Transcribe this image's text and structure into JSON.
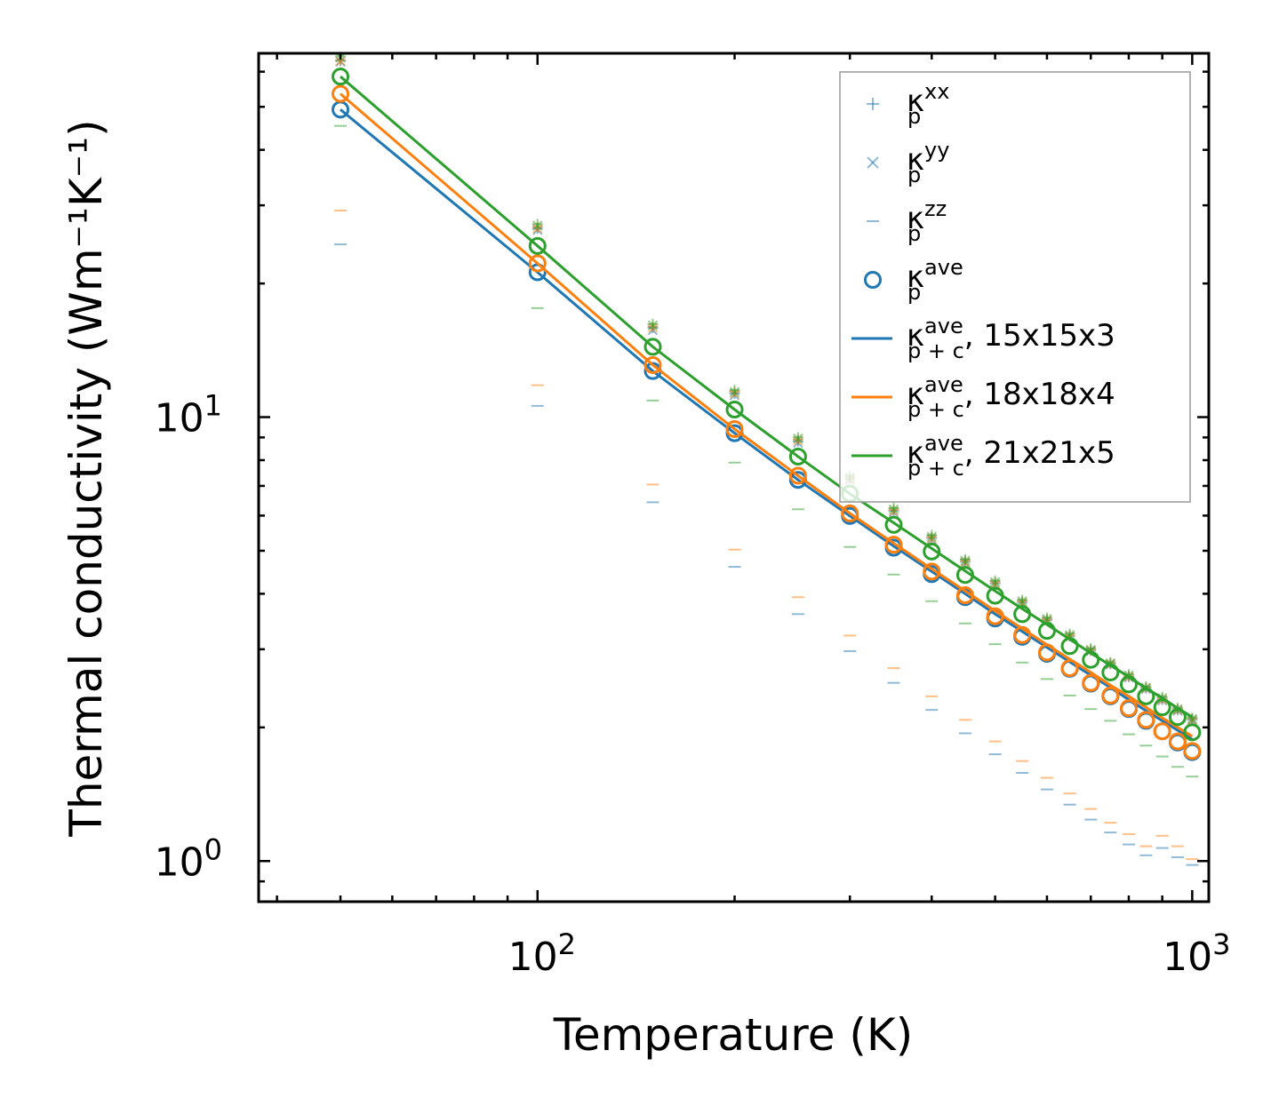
{
  "chart_data": {
    "type": "line",
    "scale": "log-log",
    "xlabel": "Temperature (K)",
    "ylabel": "Thermal conductivity (Wm⁻¹K⁻¹)",
    "xlim": [
      37.5,
      1060
    ],
    "ylim": [
      0.81,
      66
    ],
    "x_major_ticks": [
      {
        "value": 100,
        "base": "10",
        "exp": "2"
      },
      {
        "value": 1000,
        "base": "10",
        "exp": "3"
      }
    ],
    "y_major_ticks": [
      {
        "value": 1,
        "base": "10",
        "exp": "0"
      },
      {
        "value": 10,
        "base": "10",
        "exp": "1"
      }
    ],
    "x": [
      50,
      100,
      150,
      200,
      250,
      300,
      350,
      400,
      450,
      500,
      550,
      600,
      650,
      700,
      750,
      800,
      850,
      900,
      950,
      1000
    ],
    "colors": {
      "c15": "#1f77b4",
      "c18": "#ff7f0e",
      "c21": "#2ca02c"
    },
    "series": [
      {
        "name": "15x15x3",
        "color": "#1f77b4",
        "kappa_p_ave": [
          49.3,
          21.2,
          12.7,
          9.2,
          7.22,
          5.99,
          5.08,
          4.43,
          3.93,
          3.52,
          3.2,
          2.93,
          2.71,
          2.51,
          2.35,
          2.2,
          2.07,
          1.96,
          1.85,
          1.76
        ],
        "kappa_p_xx": [
          63.5,
          26.6,
          15.9,
          11.3,
          8.82,
          7.26,
          6.15,
          5.34,
          4.72,
          4.22,
          3.82,
          3.49,
          3.21,
          2.98,
          2.78,
          2.6,
          2.45,
          2.31,
          2.19,
          2.08
        ],
        "kappa_p_yy": [
          63.2,
          26.4,
          15.7,
          11.2,
          8.75,
          7.2,
          6.1,
          5.3,
          4.69,
          4.19,
          3.8,
          3.47,
          3.2,
          2.97,
          2.77,
          2.59,
          2.44,
          2.3,
          2.18,
          2.07
        ],
        "kappa_p_zz": [
          24.5,
          10.6,
          6.43,
          4.6,
          3.6,
          2.97,
          2.52,
          2.19,
          1.94,
          1.74,
          1.58,
          1.45,
          1.34,
          1.24,
          1.16,
          1.09,
          1.03,
          1.07,
          1.02,
          0.98
        ],
        "kappa_pc_ave": [
          49.3,
          21.2,
          12.7,
          9.2,
          7.22,
          5.99,
          5.12,
          4.49,
          4.0,
          3.6,
          3.29,
          3.03,
          2.81,
          2.62,
          2.46,
          2.31,
          2.18,
          2.07,
          1.97,
          1.88
        ]
      },
      {
        "name": "18x18x4",
        "color": "#ff7f0e",
        "kappa_p_ave": [
          53.5,
          22.2,
          13.1,
          9.4,
          7.38,
          6.07,
          5.16,
          4.49,
          3.97,
          3.56,
          3.23,
          2.95,
          2.72,
          2.52,
          2.36,
          2.21,
          2.08,
          1.96,
          1.86,
          1.77
        ],
        "kappa_p_xx": [
          63.7,
          26.8,
          16.0,
          11.4,
          8.9,
          7.3,
          6.18,
          5.36,
          4.74,
          4.24,
          3.84,
          3.5,
          3.22,
          2.99,
          2.79,
          2.61,
          2.46,
          2.32,
          2.2,
          2.09
        ],
        "kappa_p_yy": [
          63.4,
          26.6,
          15.9,
          11.3,
          8.85,
          7.25,
          6.14,
          5.33,
          4.71,
          4.21,
          3.82,
          3.48,
          3.2,
          2.98,
          2.78,
          2.6,
          2.45,
          2.31,
          2.19,
          2.08
        ],
        "kappa_p_zz": [
          29.2,
          11.8,
          7.05,
          5.03,
          3.93,
          3.22,
          2.72,
          2.35,
          2.08,
          1.86,
          1.68,
          1.54,
          1.42,
          1.31,
          1.22,
          1.15,
          1.08,
          1.14,
          1.08,
          1.01
        ],
        "kappa_pc_ave": [
          53.5,
          22.2,
          13.1,
          9.4,
          7.38,
          6.07,
          5.2,
          4.55,
          4.06,
          3.66,
          3.34,
          3.07,
          2.85,
          2.66,
          2.49,
          2.35,
          2.22,
          2.1,
          2.0,
          1.91
        ]
      },
      {
        "name": "21x21x5",
        "color": "#2ca02c",
        "kappa_p_ave": [
          58.5,
          24.3,
          14.4,
          10.4,
          8.15,
          6.72,
          5.72,
          4.98,
          4.41,
          3.96,
          3.6,
          3.3,
          3.05,
          2.84,
          2.66,
          2.5,
          2.35,
          2.22,
          2.11,
          1.95
        ],
        "kappa_p_xx": [
          65.0,
          27.2,
          16.2,
          11.5,
          9.0,
          7.38,
          6.24,
          5.42,
          4.78,
          4.28,
          3.87,
          3.53,
          3.25,
          3.01,
          2.8,
          2.63,
          2.47,
          2.34,
          2.21,
          2.1
        ],
        "kappa_p_yy": [
          64.6,
          27.0,
          16.1,
          11.4,
          8.95,
          7.33,
          6.2,
          5.38,
          4.75,
          4.25,
          3.85,
          3.51,
          3.23,
          2.99,
          2.79,
          2.62,
          2.46,
          2.33,
          2.2,
          2.09
        ],
        "kappa_p_zz": [
          45.3,
          17.6,
          10.9,
          7.9,
          6.2,
          5.1,
          4.42,
          3.85,
          3.43,
          3.08,
          2.8,
          2.57,
          2.36,
          2.2,
          2.07,
          1.93,
          1.82,
          1.72,
          1.63,
          1.55
        ],
        "kappa_pc_ave": [
          58.5,
          24.3,
          14.4,
          10.4,
          8.15,
          6.72,
          5.78,
          5.06,
          4.5,
          4.06,
          3.7,
          3.41,
          3.16,
          2.94,
          2.76,
          2.6,
          2.45,
          2.33,
          2.21,
          2.11
        ]
      }
    ],
    "legend": {
      "placement": "top-right",
      "entries": [
        {
          "marker": "plus",
          "symbol": "κ",
          "sub": "p",
          "sup": "xx",
          "suffix": ""
        },
        {
          "marker": "cross",
          "symbol": "κ",
          "sub": "p",
          "sup": "yy",
          "suffix": ""
        },
        {
          "marker": "dash",
          "symbol": "κ",
          "sub": "p",
          "sup": "zz",
          "suffix": ""
        },
        {
          "marker": "circle",
          "symbol": "κ",
          "sub": "p",
          "sup": "ave",
          "suffix": ""
        },
        {
          "marker": "line",
          "series": 0,
          "symbol": "κ",
          "sub": "p + c",
          "sup": "ave",
          "suffix": ", 15x15x3"
        },
        {
          "marker": "line",
          "series": 1,
          "symbol": "κ",
          "sub": "p + c",
          "sup": "ave",
          "suffix": ", 18x18x4"
        },
        {
          "marker": "line",
          "series": 2,
          "symbol": "κ",
          "sub": "p + c",
          "sup": "ave",
          "suffix": ", 21x21x5"
        }
      ]
    }
  }
}
